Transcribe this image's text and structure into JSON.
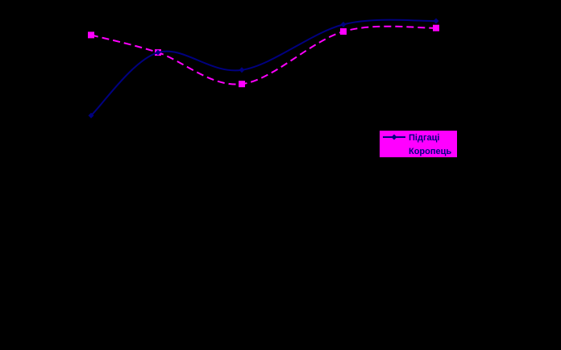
{
  "chart_data": {
    "type": "line",
    "title": "",
    "xlabel": "",
    "ylabel": "",
    "x": [
      1,
      2,
      3,
      4,
      5
    ],
    "ylim": [
      0,
      100
    ],
    "grid": false,
    "legend_position": "right",
    "background": "#000000",
    "series": [
      {
        "name": "Підгаці",
        "values": [
          67,
          85,
          80,
          93,
          94
        ],
        "color": "#000080",
        "marker": "diamond",
        "dash": "solid"
      },
      {
        "name": "Коропець",
        "values": [
          90,
          85,
          76,
          91,
          92
        ],
        "color": "#FF00FF",
        "marker": "square",
        "dash": "dashed"
      }
    ]
  }
}
